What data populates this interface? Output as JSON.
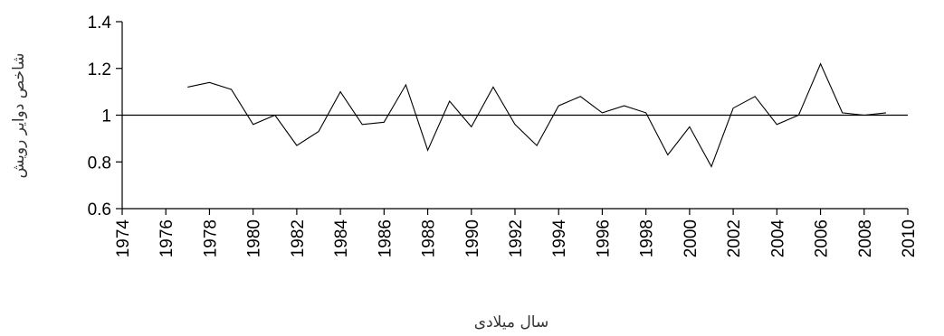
{
  "chart_data": {
    "type": "line",
    "title": "",
    "xlabel": "سال میلادی",
    "ylabel": "شاخص دوایر رویش",
    "xlim": [
      1974,
      2010
    ],
    "ylim": [
      0.6,
      1.4
    ],
    "x_ticks": [
      1974,
      1976,
      1978,
      1980,
      1982,
      1984,
      1986,
      1988,
      1990,
      1992,
      1994,
      1996,
      1998,
      2000,
      2002,
      2004,
      2006,
      2008,
      2010
    ],
    "y_ticks": [
      "0.6",
      "0.8",
      "1",
      "1.2",
      "1.4"
    ],
    "reference_line": 1,
    "grid": false,
    "legend": "none",
    "line_color": "#000000",
    "series": [
      {
        "x": [
          1977,
          1978,
          1979,
          1980,
          1981,
          1982,
          1983,
          1984,
          1985,
          1986,
          1987,
          1988,
          1989,
          1990,
          1991,
          1992,
          1993,
          1994,
          1995,
          1996,
          1997,
          1998,
          1999,
          2000,
          2001,
          2002,
          2003,
          2004,
          2005,
          2006,
          2007,
          2008,
          2009
        ],
        "values": [
          1.12,
          1.14,
          1.11,
          0.96,
          1.0,
          0.87,
          0.93,
          1.1,
          0.96,
          0.97,
          1.13,
          0.85,
          1.06,
          0.95,
          1.12,
          0.96,
          0.87,
          1.04,
          1.08,
          1.01,
          1.04,
          1.01,
          0.83,
          0.95,
          0.78,
          1.03,
          1.08,
          0.96,
          1.0,
          1.22,
          1.01,
          1.0,
          1.01
        ]
      }
    ]
  }
}
